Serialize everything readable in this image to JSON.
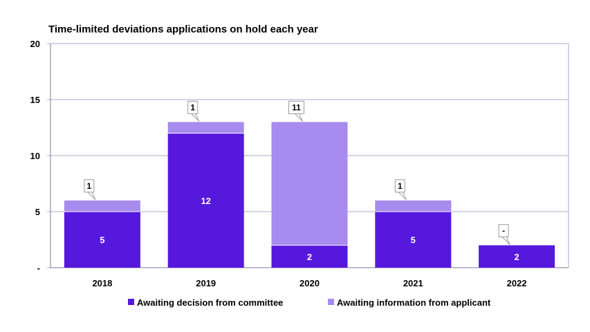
{
  "chart_data": {
    "type": "bar",
    "stacked": true,
    "title": "Time-limited deviations applications on hold each year",
    "categories": [
      "2018",
      "2019",
      "2020",
      "2021",
      "2022"
    ],
    "series": [
      {
        "name": "Awaiting decision from committee",
        "values": [
          5,
          12,
          2,
          5,
          2
        ],
        "labels": [
          "5",
          "12",
          "2",
          "5",
          "2"
        ],
        "color": "#5518DC"
      },
      {
        "name": "Awaiting information from applicant",
        "values": [
          1,
          1,
          11,
          1,
          0
        ],
        "labels": [
          "1",
          "1",
          "11",
          "1",
          "-"
        ],
        "color": "#A78BEE"
      }
    ],
    "ylim": [
      0,
      20
    ],
    "yticks": [
      0,
      5,
      10,
      15,
      20
    ],
    "ytick_labels": [
      "-",
      "5",
      "10",
      "15",
      "20"
    ],
    "grid": true,
    "legend_position": "bottom"
  },
  "colors": {
    "gridline": "#C9C3D9",
    "axis": "#A9A3BD",
    "callout_border": "#999999"
  }
}
